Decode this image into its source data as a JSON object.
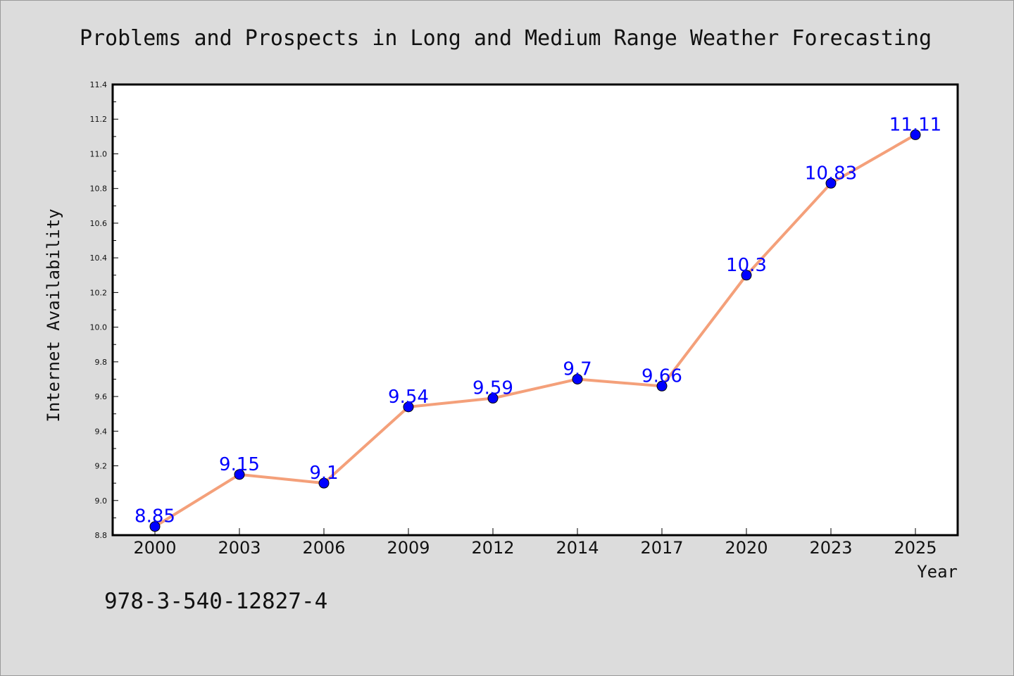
{
  "chart_data": {
    "type": "line",
    "title": "Problems and Prospects in Long and Medium Range Weather Forecasting",
    "xlabel": "Year",
    "ylabel": "Internet Availability",
    "categories": [
      "2000",
      "2003",
      "2006",
      "2009",
      "2012",
      "2014",
      "2017",
      "2020",
      "2023",
      "2025"
    ],
    "series": [
      {
        "values": [
          8.85,
          9.15,
          9.1,
          9.54,
          9.59,
          9.7,
          9.66,
          10.3,
          10.83,
          11.11
        ]
      }
    ],
    "data_labels": [
      "8.85",
      "9.15",
      "9.1",
      "9.54",
      "9.59",
      "9.7",
      "9.66",
      "10.3",
      "10.83",
      "11.11"
    ],
    "ylim": [
      8.8,
      11.4
    ],
    "yticks": [
      "8.8",
      "9.0",
      "9.2",
      "9.4",
      "9.6",
      "9.8",
      "10.0",
      "10.2",
      "10.4",
      "10.6",
      "10.8",
      "11.0",
      "11.2",
      "11.4"
    ],
    "grid": false,
    "legend": "none",
    "colors": {
      "line": "#f4a07a",
      "marker": "#0000ff",
      "label": "#0000ff",
      "background": "#dcdcdc",
      "plot_area": "#ffffff"
    }
  },
  "footer_text": "978-3-540-12827-4"
}
